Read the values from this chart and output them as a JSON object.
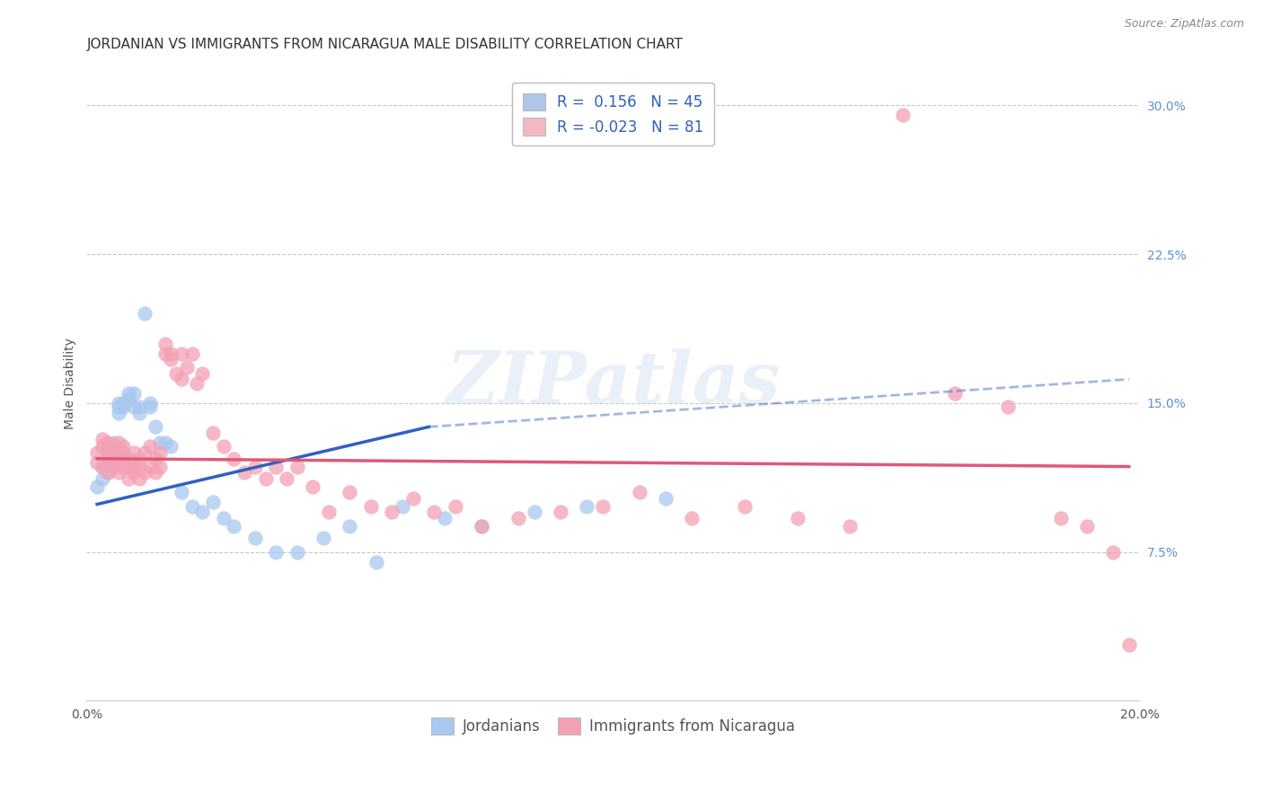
{
  "title": "JORDANIAN VS IMMIGRANTS FROM NICARAGUA MALE DISABILITY CORRELATION CHART",
  "source": "Source: ZipAtlas.com",
  "ylabel": "Male Disability",
  "xlim": [
    0.0,
    0.2
  ],
  "ylim": [
    0.0,
    0.32
  ],
  "xticks": [
    0.0,
    0.05,
    0.1,
    0.15,
    0.2
  ],
  "yticks_right": [
    0.075,
    0.15,
    0.225,
    0.3
  ],
  "ytick_labels_right": [
    "7.5%",
    "15.0%",
    "22.5%",
    "30.0%"
  ],
  "legend_entries": [
    {
      "label": "R =  0.156   N = 45",
      "color": "#aec6e8"
    },
    {
      "label": "R = -0.023   N = 81",
      "color": "#f4b8c1"
    }
  ],
  "jordanians": {
    "color": "#a8c8f0",
    "trendline_color": "#3060c0",
    "x": [
      0.002,
      0.003,
      0.003,
      0.004,
      0.004,
      0.004,
      0.005,
      0.005,
      0.005,
      0.006,
      0.006,
      0.006,
      0.007,
      0.007,
      0.008,
      0.008,
      0.009,
      0.009,
      0.01,
      0.01,
      0.011,
      0.012,
      0.012,
      0.013,
      0.014,
      0.015,
      0.016,
      0.018,
      0.02,
      0.022,
      0.024,
      0.026,
      0.028,
      0.032,
      0.036,
      0.04,
      0.045,
      0.05,
      0.055,
      0.06,
      0.068,
      0.075,
      0.085,
      0.095,
      0.11
    ],
    "y": [
      0.108,
      0.118,
      0.112,
      0.125,
      0.115,
      0.122,
      0.13,
      0.12,
      0.118,
      0.148,
      0.15,
      0.145,
      0.148,
      0.15,
      0.152,
      0.155,
      0.148,
      0.155,
      0.145,
      0.148,
      0.195,
      0.148,
      0.15,
      0.138,
      0.13,
      0.13,
      0.128,
      0.105,
      0.098,
      0.095,
      0.1,
      0.092,
      0.088,
      0.082,
      0.075,
      0.075,
      0.082,
      0.088,
      0.07,
      0.098,
      0.092,
      0.088,
      0.095,
      0.098,
      0.102
    ]
  },
  "nicaraguans": {
    "color": "#f4a0b4",
    "trendline_color": "#e05878",
    "x": [
      0.002,
      0.002,
      0.003,
      0.003,
      0.003,
      0.004,
      0.004,
      0.004,
      0.004,
      0.005,
      0.005,
      0.005,
      0.005,
      0.006,
      0.006,
      0.006,
      0.007,
      0.007,
      0.007,
      0.007,
      0.008,
      0.008,
      0.008,
      0.009,
      0.009,
      0.009,
      0.01,
      0.01,
      0.01,
      0.011,
      0.011,
      0.012,
      0.012,
      0.013,
      0.013,
      0.014,
      0.014,
      0.015,
      0.015,
      0.016,
      0.016,
      0.017,
      0.018,
      0.018,
      0.019,
      0.02,
      0.021,
      0.022,
      0.024,
      0.026,
      0.028,
      0.03,
      0.032,
      0.034,
      0.036,
      0.038,
      0.04,
      0.043,
      0.046,
      0.05,
      0.054,
      0.058,
      0.062,
      0.066,
      0.07,
      0.075,
      0.082,
      0.09,
      0.098,
      0.105,
      0.115,
      0.125,
      0.135,
      0.145,
      0.155,
      0.165,
      0.175,
      0.185,
      0.19,
      0.195,
      0.198
    ],
    "y": [
      0.12,
      0.125,
      0.118,
      0.128,
      0.132,
      0.115,
      0.122,
      0.125,
      0.13,
      0.118,
      0.125,
      0.128,
      0.12,
      0.115,
      0.125,
      0.13,
      0.118,
      0.122,
      0.125,
      0.128,
      0.112,
      0.118,
      0.122,
      0.115,
      0.118,
      0.125,
      0.112,
      0.118,
      0.122,
      0.115,
      0.125,
      0.118,
      0.128,
      0.115,
      0.122,
      0.118,
      0.125,
      0.175,
      0.18,
      0.175,
      0.172,
      0.165,
      0.175,
      0.162,
      0.168,
      0.175,
      0.16,
      0.165,
      0.135,
      0.128,
      0.122,
      0.115,
      0.118,
      0.112,
      0.118,
      0.112,
      0.118,
      0.108,
      0.095,
      0.105,
      0.098,
      0.095,
      0.102,
      0.095,
      0.098,
      0.088,
      0.092,
      0.095,
      0.098,
      0.105,
      0.092,
      0.098,
      0.092,
      0.088,
      0.295,
      0.155,
      0.148,
      0.092,
      0.088,
      0.075,
      0.028
    ]
  },
  "trendline_jordanians": {
    "x_start": 0.002,
    "x_solid_end": 0.065,
    "x_dash_end": 0.198,
    "y_start": 0.099,
    "y_solid_end": 0.138,
    "y_dash_end": 0.162
  },
  "trendline_nicaraguans": {
    "x_start": 0.002,
    "x_end": 0.198,
    "y_start": 0.122,
    "y_end": 0.118
  },
  "watermark": "ZIPatlas",
  "background_color": "#ffffff",
  "grid_color": "#c8c8c8",
  "title_fontsize": 11,
  "axis_label_fontsize": 10,
  "tick_fontsize": 10
}
